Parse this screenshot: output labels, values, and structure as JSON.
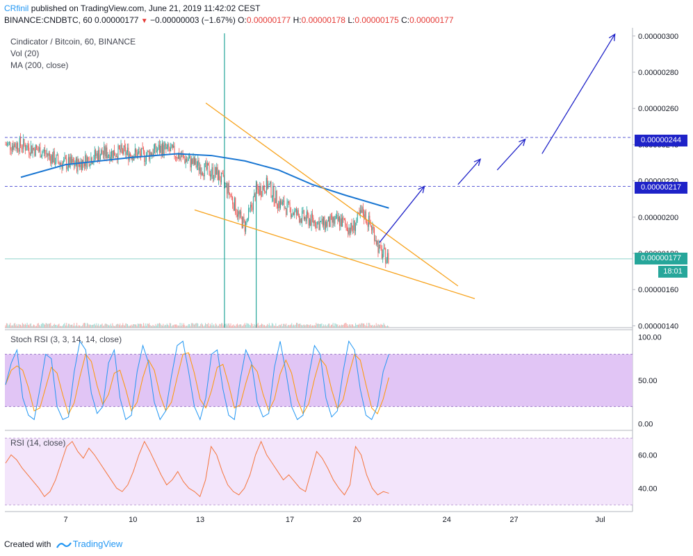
{
  "header": {
    "user": "CRfinil",
    "published": "published on TradingView.com, June 21, 2019 11:42:02 CEST",
    "symbol": "BINANCE:CNDBTC, 60",
    "last": "0.00000177",
    "change": "−0.00000003 (−1.67%)",
    "o_label": "O:",
    "o": "0.00000177",
    "h_label": "H:",
    "h": "0.00000178",
    "l_label": "L:",
    "l": "0.00000175",
    "c_label": "C:",
    "c": "0.00000177"
  },
  "panels": {
    "main_title": "Cindicator / Bitcoin, 60, BINANCE",
    "vol_label": "Vol (20)",
    "ma_label": "MA (200, close)",
    "stoch_label": "Stoch RSI (3, 3, 14, 14, close)",
    "rsi_label": "RSI (14, close)"
  },
  "price_tags": {
    "resistance_2": "0.00000244",
    "resistance_1": "0.00000217",
    "last_price": "0.00000177",
    "countdown": "18:01"
  },
  "footer": {
    "created_with": "Created with",
    "brand": "TradingView"
  },
  "colors": {
    "up": "#26a69a",
    "down": "#ef5350",
    "ma": "#1976d2",
    "wedge": "#f7a21b",
    "arrows": "#1e22c8",
    "stoch_band": "#e1c5f5",
    "rsi_band": "#f3e5fb",
    "rsi_line": "#f4743b",
    "stoch_k": "#2196f3",
    "stoch_d": "#ff9800",
    "level_line": "#5c5cd6",
    "price_tag_bg": "#1e22c8"
  },
  "chart_data": [
    {
      "type": "candlestick",
      "title": "Cindicator / Bitcoin, 60, BINANCE",
      "x_ticks": [
        "7",
        "10",
        "13",
        "17",
        "20",
        "24",
        "27",
        "Jul"
      ],
      "y_ticks": [
        "0.00000140",
        "0.00000160",
        "0.00000180",
        "0.00000200",
        "0.00000220",
        "0.00000240",
        "0.00000260",
        "0.00000280",
        "0.00000300"
      ],
      "ylim": [
        1.39e-06,
        3.03e-06
      ],
      "horizontal_levels": [
        2.44e-06,
        2.17e-06
      ],
      "last_price": 1.77e-06,
      "price_path": [
        {
          "t": "Jun 5 00:00",
          "p": 2.4e-06
        },
        {
          "t": "Jun 6 00:00",
          "p": 2.36e-06
        },
        {
          "t": "Jun 6 18:00",
          "p": 2.3e-06
        },
        {
          "t": "Jun 7 12:00",
          "p": 2.29e-06
        },
        {
          "t": "Jun 8 12:00",
          "p": 2.35e-06
        },
        {
          "t": "Jun 9 12:00",
          "p": 2.36e-06
        },
        {
          "t": "Jun 10 12:00",
          "p": 2.34e-06
        },
        {
          "t": "Jun 11 06:00",
          "p": 2.38e-06
        },
        {
          "t": "Jun 11 18:00",
          "p": 2.36e-06
        },
        {
          "t": "Jun 12 12:00",
          "p": 2.31e-06
        },
        {
          "t": "Jun 13 06:00",
          "p": 2.26e-06
        },
        {
          "t": "Jun 13 18:00",
          "p": 2.24e-06
        },
        {
          "t": "Jun 14 06:00",
          "p": 2.15e-06
        },
        {
          "t": "Jun 14 18:00",
          "p": 2e-06
        },
        {
          "t": "Jun 15 00:00",
          "p": 1.95e-06
        },
        {
          "t": "Jun 15 12:00",
          "p": 2.14e-06
        },
        {
          "t": "Jun 16 00:00",
          "p": 2.18e-06
        },
        {
          "t": "Jun 16 12:00",
          "p": 2.08e-06
        },
        {
          "t": "Jun 17 12:00",
          "p": 2e-06
        },
        {
          "t": "Jun 18 12:00",
          "p": 1.96e-06
        },
        {
          "t": "Jun 19 06:00",
          "p": 1.98e-06
        },
        {
          "t": "Jun 19 18:00",
          "p": 1.93e-06
        },
        {
          "t": "Jun 20 06:00",
          "p": 2.03e-06
        },
        {
          "t": "Jun 20 18:00",
          "p": 1.92e-06
        },
        {
          "t": "Jun 21 00:00",
          "p": 1.81e-06
        },
        {
          "t": "Jun 21 10:00",
          "p": 1.77e-06
        }
      ],
      "moving_average_200": [
        {
          "t": "Jun 5 00:00",
          "p": 2.22e-06
        },
        {
          "t": "Jun 7 00:00",
          "p": 2.29e-06
        },
        {
          "t": "Jun 10 00:00",
          "p": 2.33e-06
        },
        {
          "t": "Jun 12 00:00",
          "p": 2.35e-06
        },
        {
          "t": "Jun 13 12:00",
          "p": 2.34e-06
        },
        {
          "t": "Jun 15 00:00",
          "p": 2.31e-06
        },
        {
          "t": "Jun 16 12:00",
          "p": 2.26e-06
        },
        {
          "t": "Jun 18 00:00",
          "p": 2.18e-06
        },
        {
          "t": "Jun 19 12:00",
          "p": 2.12e-06
        },
        {
          "t": "Jun 21 10:00",
          "p": 2.05e-06
        }
      ],
      "volume_spikes": [
        {
          "t": "Jun 14 02:00",
          "relative": 1.0
        },
        {
          "t": "Jun 15 12:00",
          "relative": 0.5
        }
      ],
      "drawings": {
        "wedge_upper": [
          {
            "t": "Jun 13 06:00",
            "p": 2.63e-06
          },
          {
            "t": "Jun 24 12:00",
            "p": 1.62e-06
          }
        ],
        "wedge_lower": [
          {
            "t": "Jun 12 18:00",
            "p": 2.04e-06
          },
          {
            "t": "Jun 25 06:00",
            "p": 1.55e-06
          }
        ],
        "projection_arrows": [
          [
            {
              "t": "Jun 21 00:00",
              "p": 1.86e-06
            },
            {
              "t": "Jun 23 00:00",
              "p": 2.17e-06
            }
          ],
          [
            {
              "t": "Jun 24 12:00",
              "p": 2.18e-06
            },
            {
              "t": "Jun 25 12:00",
              "p": 2.32e-06
            }
          ],
          [
            {
              "t": "Jun 26 06:00",
              "p": 2.26e-06
            },
            {
              "t": "Jun 27 12:00",
              "p": 2.43e-06
            }
          ],
          [
            {
              "t": "Jun 28 06:00",
              "p": 2.35e-06
            },
            {
              "t": "Jul 1 12:00",
              "p": 3.01e-06
            }
          ]
        ]
      }
    },
    {
      "type": "line",
      "title": "Stoch RSI (3, 3, 14, 14, close)",
      "y_ticks": [
        "0.00",
        "50.00",
        "100.00"
      ],
      "ylim": [
        -5,
        105
      ],
      "band": [
        20,
        80
      ],
      "series": [
        {
          "name": "%K"
        },
        {
          "name": "%D"
        }
      ],
      "values": [
        45,
        70,
        85,
        30,
        10,
        5,
        40,
        80,
        75,
        20,
        5,
        8,
        60,
        95,
        85,
        35,
        12,
        20,
        70,
        85,
        30,
        5,
        10,
        60,
        90,
        70,
        25,
        5,
        15,
        55,
        90,
        95,
        60,
        20,
        5,
        30,
        80,
        85,
        40,
        10,
        5,
        50,
        85,
        70,
        25,
        8,
        12,
        65,
        95,
        60,
        20,
        5,
        10,
        55,
        90,
        80,
        30,
        8,
        15,
        60,
        95,
        85,
        40,
        10,
        5,
        20,
        60,
        80
      ]
    },
    {
      "type": "line",
      "title": "RSI (14, close)",
      "y_ticks": [
        "40.00",
        "60.00"
      ],
      "ylim": [
        26,
        73
      ],
      "band": [
        30,
        70
      ],
      "values": [
        55,
        60,
        57,
        52,
        48,
        44,
        40,
        35,
        38,
        45,
        55,
        65,
        68,
        62,
        58,
        64,
        60,
        55,
        50,
        45,
        40,
        38,
        42,
        50,
        60,
        68,
        62,
        55,
        48,
        42,
        45,
        50,
        44,
        40,
        38,
        35,
        45,
        65,
        60,
        50,
        42,
        38,
        36,
        40,
        48,
        60,
        68,
        60,
        55,
        50,
        45,
        48,
        44,
        40,
        38,
        50,
        62,
        58,
        52,
        45,
        40,
        36,
        42,
        65,
        60,
        48,
        40,
        36,
        38,
        37
      ]
    }
  ]
}
